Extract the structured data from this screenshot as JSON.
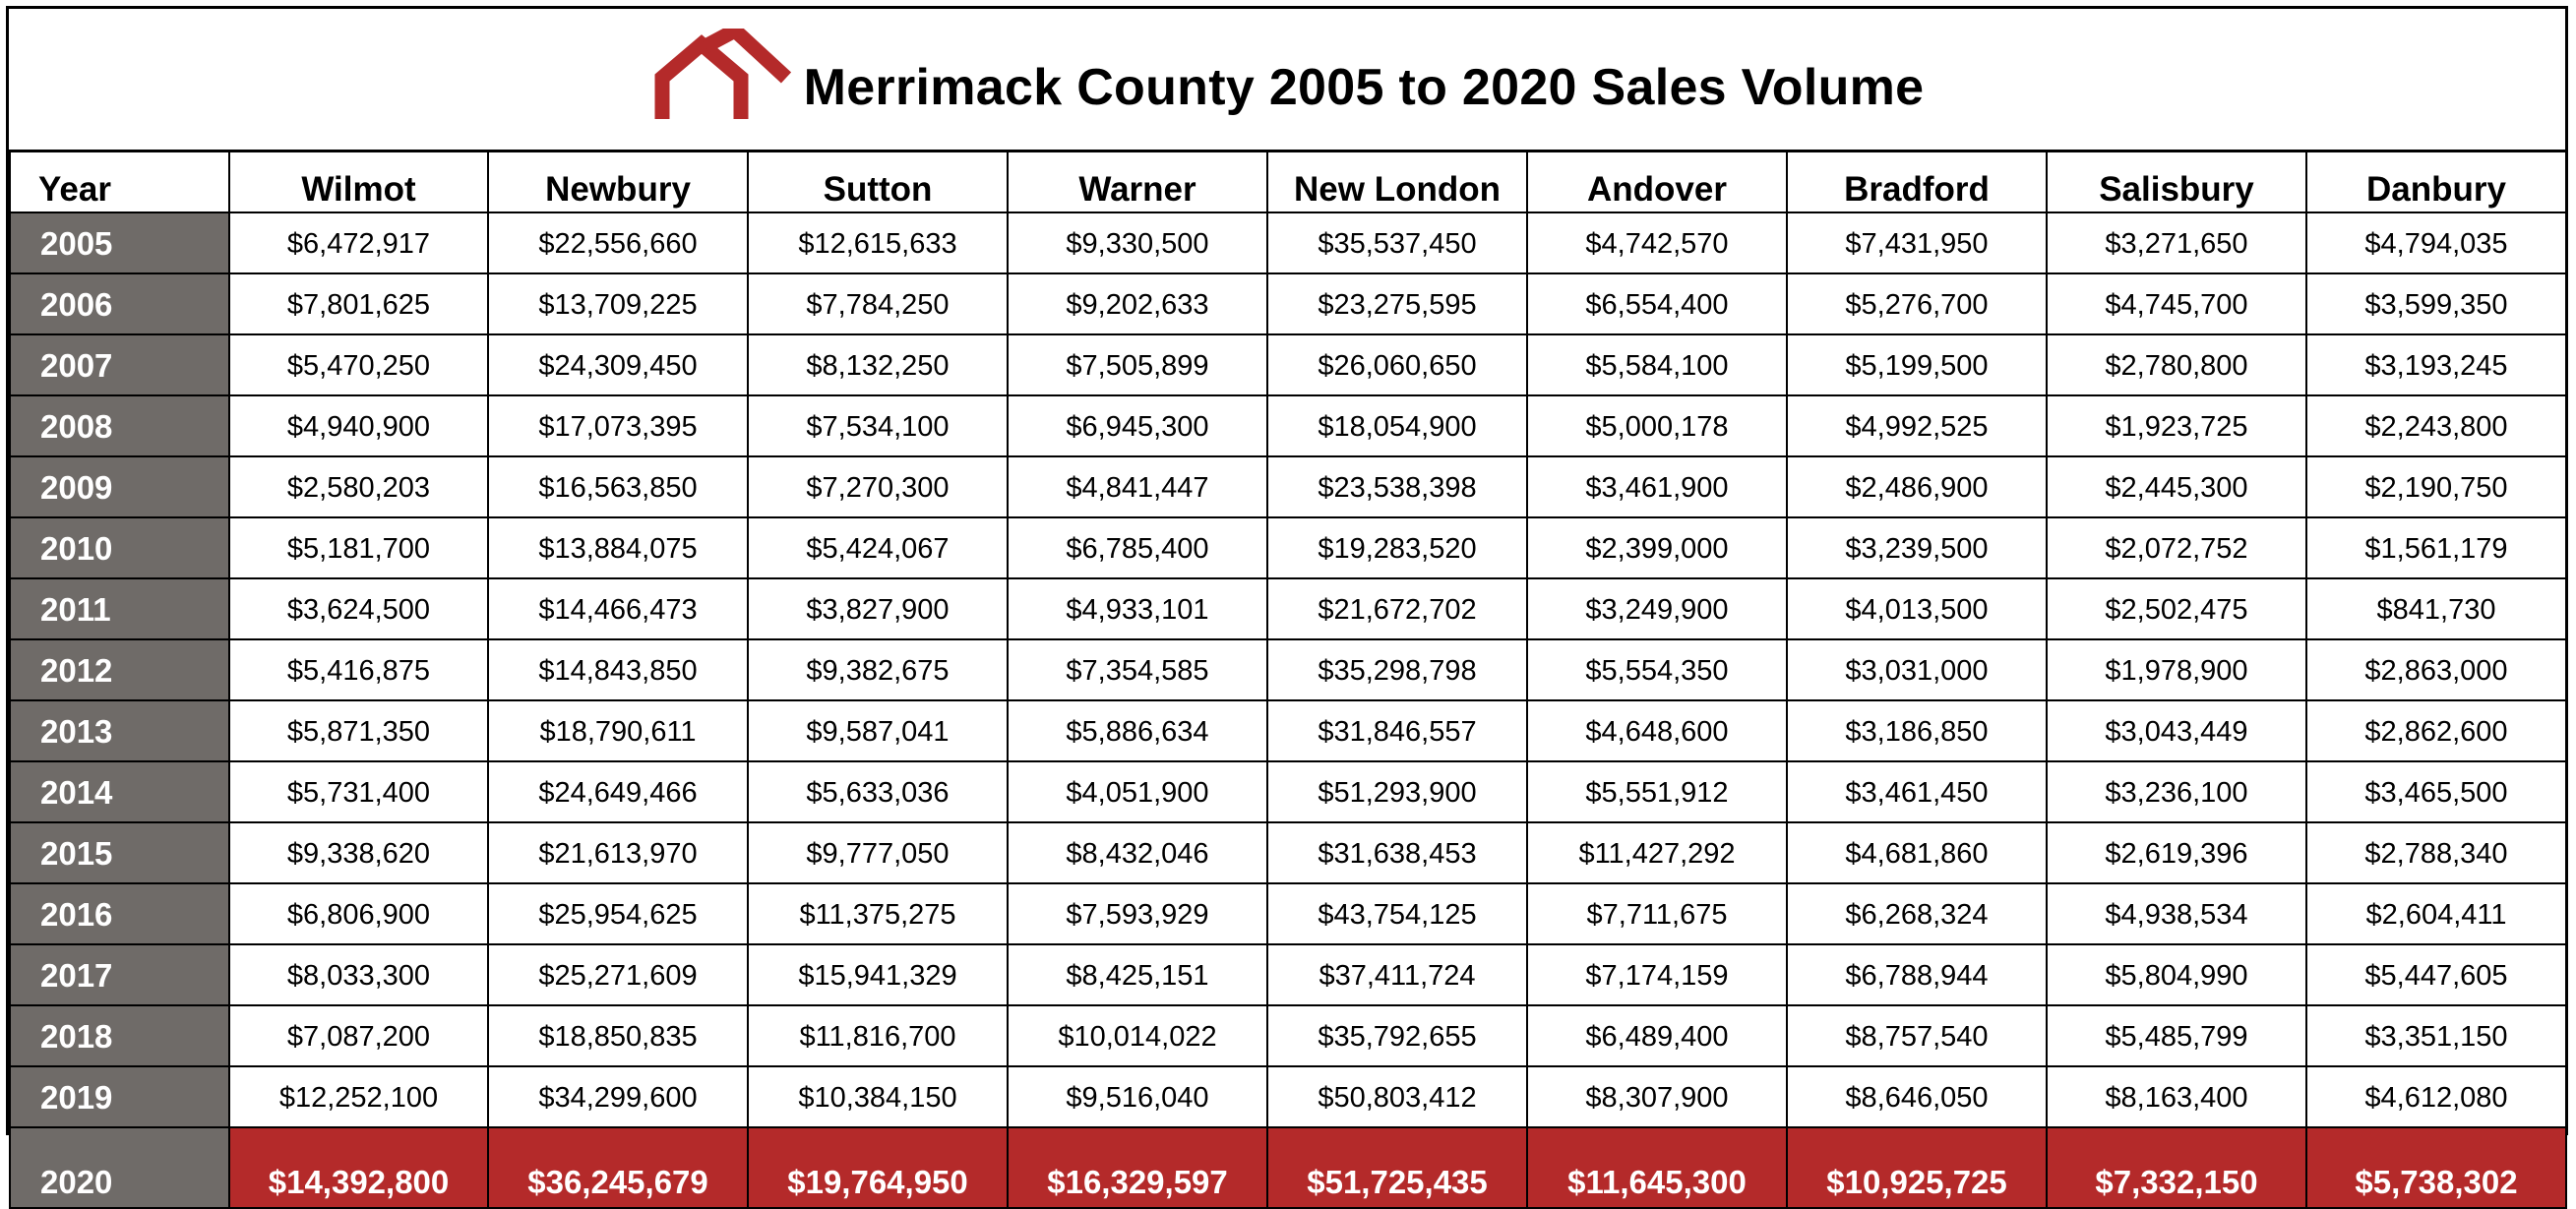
{
  "title": "Merrimack County 2005 to 2020 Sales Volume",
  "colors": {
    "header_year_bg": "#6f6b68",
    "highlight_bg": "#b42a2a",
    "logo": "#b42a2a"
  },
  "logo_icon": "house-roof-icon",
  "chart_data": {
    "type": "table",
    "title": "Merrimack County 2005 to 2020 Sales Volume",
    "columns": [
      "Year",
      "Wilmot",
      "Newbury",
      "Sutton",
      "Warner",
      "New London",
      "Andover",
      "Bradford",
      "Salisbury",
      "Danbury"
    ],
    "rows": [
      [
        "2005",
        "$6,472,917",
        "$22,556,660",
        "$12,615,633",
        "$9,330,500",
        "$35,537,450",
        "$4,742,570",
        "$7,431,950",
        "$3,271,650",
        "$4,794,035"
      ],
      [
        "2006",
        "$7,801,625",
        "$13,709,225",
        "$7,784,250",
        "$9,202,633",
        "$23,275,595",
        "$6,554,400",
        "$5,276,700",
        "$4,745,700",
        "$3,599,350"
      ],
      [
        "2007",
        "$5,470,250",
        "$24,309,450",
        "$8,132,250",
        "$7,505,899",
        "$26,060,650",
        "$5,584,100",
        "$5,199,500",
        "$2,780,800",
        "$3,193,245"
      ],
      [
        "2008",
        "$4,940,900",
        "$17,073,395",
        "$7,534,100",
        "$6,945,300",
        "$18,054,900",
        "$5,000,178",
        "$4,992,525",
        "$1,923,725",
        "$2,243,800"
      ],
      [
        "2009",
        "$2,580,203",
        "$16,563,850",
        "$7,270,300",
        "$4,841,447",
        "$23,538,398",
        "$3,461,900",
        "$2,486,900",
        "$2,445,300",
        "$2,190,750"
      ],
      [
        "2010",
        "$5,181,700",
        "$13,884,075",
        "$5,424,067",
        "$6,785,400",
        "$19,283,520",
        "$2,399,000",
        "$3,239,500",
        "$2,072,752",
        "$1,561,179"
      ],
      [
        "2011",
        "$3,624,500",
        "$14,466,473",
        "$3,827,900",
        "$4,933,101",
        "$21,672,702",
        "$3,249,900",
        "$4,013,500",
        "$2,502,475",
        "$841,730"
      ],
      [
        "2012",
        "$5,416,875",
        "$14,843,850",
        "$9,382,675",
        "$7,354,585",
        "$35,298,798",
        "$5,554,350",
        "$3,031,000",
        "$1,978,900",
        "$2,863,000"
      ],
      [
        "2013",
        "$5,871,350",
        "$18,790,611",
        "$9,587,041",
        "$5,886,634",
        "$31,846,557",
        "$4,648,600",
        "$3,186,850",
        "$3,043,449",
        "$2,862,600"
      ],
      [
        "2014",
        "$5,731,400",
        "$24,649,466",
        "$5,633,036",
        "$4,051,900",
        "$51,293,900",
        "$5,551,912",
        "$3,461,450",
        "$3,236,100",
        "$3,465,500"
      ],
      [
        "2015",
        "$9,338,620",
        "$21,613,970",
        "$9,777,050",
        "$8,432,046",
        "$31,638,453",
        "$11,427,292",
        "$4,681,860",
        "$2,619,396",
        "$2,788,340"
      ],
      [
        "2016",
        "$6,806,900",
        "$25,954,625",
        "$11,375,275",
        "$7,593,929",
        "$43,754,125",
        "$7,711,675",
        "$6,268,324",
        "$4,938,534",
        "$2,604,411"
      ],
      [
        "2017",
        "$8,033,300",
        "$25,271,609",
        "$15,941,329",
        "$8,425,151",
        "$37,411,724",
        "$7,174,159",
        "$6,788,944",
        "$5,804,990",
        "$5,447,605"
      ],
      [
        "2018",
        "$7,087,200",
        "$18,850,835",
        "$11,816,700",
        "$10,014,022",
        "$35,792,655",
        "$6,489,400",
        "$8,757,540",
        "$5,485,799",
        "$3,351,150"
      ],
      [
        "2019",
        "$12,252,100",
        "$34,299,600",
        "$10,384,150",
        "$9,516,040",
        "$50,803,412",
        "$8,307,900",
        "$8,646,050",
        "$8,163,400",
        "$4,612,080"
      ],
      [
        "2020",
        "$14,392,800",
        "$36,245,679",
        "$19,764,950",
        "$16,329,597",
        "$51,725,435",
        "$11,645,300",
        "$10,925,725",
        "$7,332,150",
        "$5,738,302"
      ]
    ],
    "highlight_row": "2020"
  }
}
